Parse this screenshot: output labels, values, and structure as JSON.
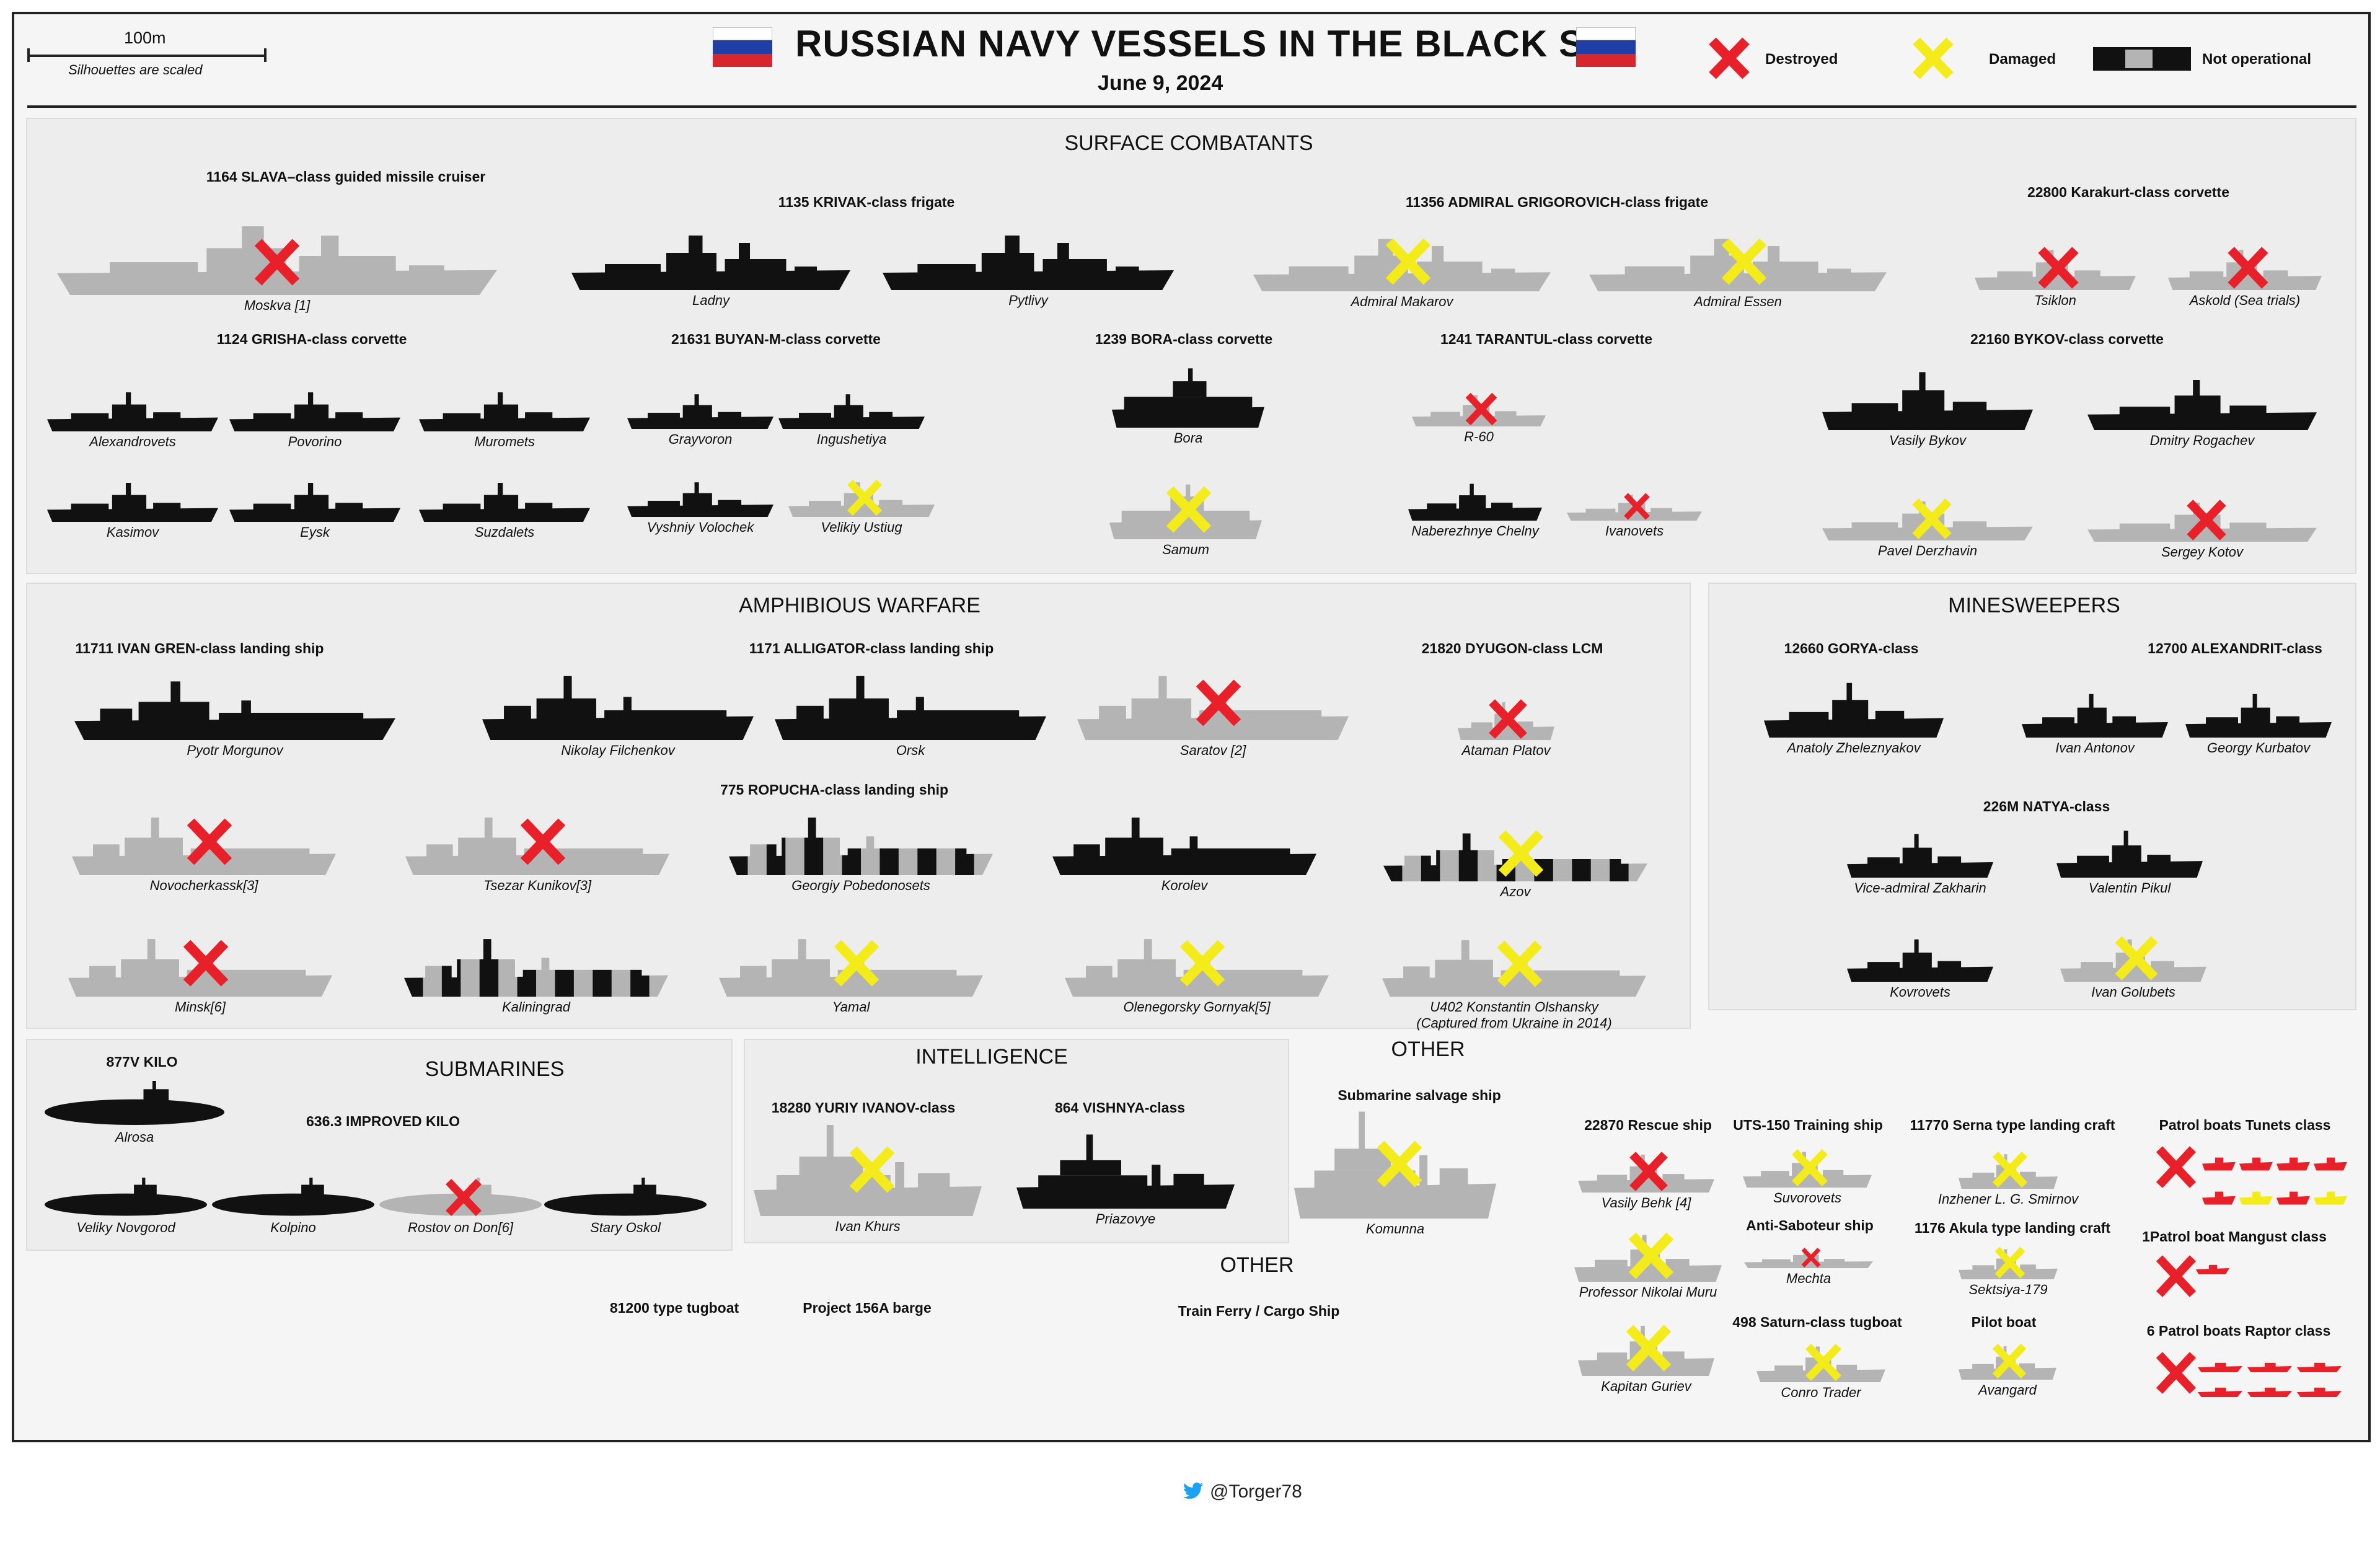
{
  "header": {
    "title": "RUSSIAN NAVY VESSELS IN THE BLACK SEA",
    "date": "June 9, 2024",
    "scale_label": "100m",
    "scale_note": "Silhouettes are scaled"
  },
  "legend": {
    "destroyed": "Destroyed",
    "damaged": "Damaged",
    "not_operational": "Not operational"
  },
  "colors": {
    "destroyed": "#e8202a",
    "damaged": "#f4ec1a",
    "active_hull": "#111111",
    "lost_hull": "#b4b4b4",
    "flag_white": "#ffffff",
    "flag_blue": "#1f3fa6",
    "flag_red": "#d8262c",
    "twitter_blue": "#1da1f2"
  },
  "sections": {
    "surface": "SURFACE COMBATANTS",
    "amphibious": "AMPHIBIOUS WARFARE",
    "minesweepers": "MINESWEEPERS",
    "submarines": "SUBMARINES",
    "intelligence": "INTELLIGENCE",
    "other_top": "OTHER",
    "other_bottom": "OTHER"
  },
  "classes": {
    "slava": "1164 SLAVA–class guided missile cruiser",
    "krivak": "1135 KRIVAK-class frigate",
    "grigorovich": "11356 ADMIRAL GRIGOROVICH-class frigate",
    "karakurt": "22800 Karakurt-class corvette",
    "grisha": "1124 GRISHA-class corvette",
    "buyan": "21631 BUYAN-M-class corvette",
    "bora": "1239 BORA-class corvette",
    "tarantul": "1241 TARANTUL-class corvette",
    "bykov": "22160 BYKOV-class corvette",
    "ivan_gren": "11711 IVAN GREN-class landing ship",
    "alligator": "1171 ALLIGATOR-class landing ship",
    "dyugon": "21820 DYUGON-class LCM",
    "gorya": "12660 GORYA-class",
    "alexandrit": "12700 ALEXANDRIT-class",
    "ropucha": "775 ROPUCHA-class landing ship",
    "natya": "226M NATYA-class",
    "kilo": "877V KILO",
    "improved_kilo": "636.3 IMPROVED KILO",
    "yuriy_ivanov": "18280 YURIY IVANOV-class",
    "vishnya": "864 VISHNYA-class",
    "salvage": "Submarine salvage ship",
    "rescue": "22870 Rescue ship",
    "uts150": "UTS-150 Training ship",
    "serna": "11770 Serna type landing craft",
    "tunets": "Patrol boats Tunets class",
    "antisab": "Anti-Saboteur ship",
    "akula": "1176 Akula type landing craft",
    "mangust": "1Patrol boat Mangust class",
    "saturn": "498 Saturn-class tugboat",
    "pilot": "Pilot boat",
    "raptor": "6 Patrol boats Raptor class",
    "tug81200": "81200 type tugboat",
    "barge156a": "Project 156A barge",
    "ferry": "Train Ferry / Cargo Ship"
  },
  "ships": [
    {
      "name": "Moskva [1]",
      "status": "destroyed"
    },
    {
      "name": "Ladny",
      "status": "active"
    },
    {
      "name": "Pytlivy",
      "status": "active"
    },
    {
      "name": "Admiral Makarov",
      "status": "damaged"
    },
    {
      "name": "Admiral Essen",
      "status": "damaged"
    },
    {
      "name": "Tsiklon",
      "status": "destroyed"
    },
    {
      "name": "Askold (Sea trials)",
      "status": "destroyed"
    },
    {
      "name": "Alexandrovets",
      "status": "active"
    },
    {
      "name": "Povorino",
      "status": "active"
    },
    {
      "name": "Muromets",
      "status": "active"
    },
    {
      "name": "Kasimov",
      "status": "active"
    },
    {
      "name": "Eysk",
      "status": "active"
    },
    {
      "name": "Suzdalets",
      "status": "active"
    },
    {
      "name": "Grayvoron",
      "status": "active"
    },
    {
      "name": "Ingushetiya",
      "status": "active"
    },
    {
      "name": "Vyshniy Volochek",
      "status": "active"
    },
    {
      "name": "Velikiy Ustiug",
      "status": "damaged"
    },
    {
      "name": "Bora",
      "status": "active"
    },
    {
      "name": "Samum",
      "status": "damaged"
    },
    {
      "name": "R-60",
      "status": "destroyed"
    },
    {
      "name": "Naberezhnye Chelny",
      "status": "active"
    },
    {
      "name": "Ivanovets",
      "status": "destroyed"
    },
    {
      "name": "Vasily Bykov",
      "status": "active"
    },
    {
      "name": "Dmitry Rogachev",
      "status": "active"
    },
    {
      "name": "Pavel Derzhavin",
      "status": "damaged"
    },
    {
      "name": "Sergey Kotov",
      "status": "destroyed"
    },
    {
      "name": "Pyotr Morgunov",
      "status": "active"
    },
    {
      "name": "Nikolay Filchenkov",
      "status": "active"
    },
    {
      "name": "Orsk",
      "status": "active"
    },
    {
      "name": "Saratov [2]",
      "status": "destroyed"
    },
    {
      "name": "Ataman Platov",
      "status": "destroyed"
    },
    {
      "name": "Anatoly Zheleznyakov",
      "status": "active"
    },
    {
      "name": "Ivan Antonov",
      "status": "active"
    },
    {
      "name": "Georgy Kurbatov",
      "status": "active"
    },
    {
      "name": "Novocherkassk[3]",
      "status": "destroyed"
    },
    {
      "name": "Tsezar Kunikov[3]",
      "status": "destroyed"
    },
    {
      "name": "Georgiy Pobedonosets",
      "status": "not_operational"
    },
    {
      "name": "Korolev",
      "status": "active"
    },
    {
      "name": "Azov",
      "status": "not_operational_damaged"
    },
    {
      "name": "Vice-admiral Zakharin",
      "status": "active"
    },
    {
      "name": "Valentin Pikul",
      "status": "active"
    },
    {
      "name": "Minsk[6]",
      "status": "destroyed"
    },
    {
      "name": "Kaliningrad",
      "status": "not_operational"
    },
    {
      "name": "Yamal",
      "status": "damaged"
    },
    {
      "name": "Olenegorsky Gornyak[5]",
      "status": "damaged"
    },
    {
      "name": "U402 Konstantin Olshansky",
      "note": "(Captured from Ukraine in 2014)",
      "status": "damaged"
    },
    {
      "name": "Kovrovets",
      "status": "active"
    },
    {
      "name": "Ivan Golubets",
      "status": "damaged"
    },
    {
      "name": "Alrosa",
      "status": "active"
    },
    {
      "name": "Veliky Novgorod",
      "status": "active"
    },
    {
      "name": "Kolpino",
      "status": "active"
    },
    {
      "name": "Rostov on Don[6]",
      "status": "destroyed"
    },
    {
      "name": "Stary Oskol",
      "status": "active"
    },
    {
      "name": "Ivan Khurs",
      "status": "damaged"
    },
    {
      "name": "Priazovye",
      "status": "active"
    },
    {
      "name": "Komunna",
      "status": "damaged"
    },
    {
      "name": "Vasily Behk [4]",
      "status": "destroyed"
    },
    {
      "name": "Professor Nikolai Muru",
      "status": "damaged"
    },
    {
      "name": "Kapitan Guriev",
      "status": "damaged"
    },
    {
      "name": "Suvorovets",
      "status": "damaged"
    },
    {
      "name": "Mechta",
      "status": "destroyed"
    },
    {
      "name": "Inzhener L. G. Smirnov",
      "status": "damaged"
    },
    {
      "name": "Sektsiya-179",
      "status": "damaged"
    },
    {
      "name": "Conro Trader",
      "status": "damaged"
    },
    {
      "name": "Avangard",
      "status": "damaged"
    }
  ],
  "footer": {
    "handle": "@Torger78"
  }
}
